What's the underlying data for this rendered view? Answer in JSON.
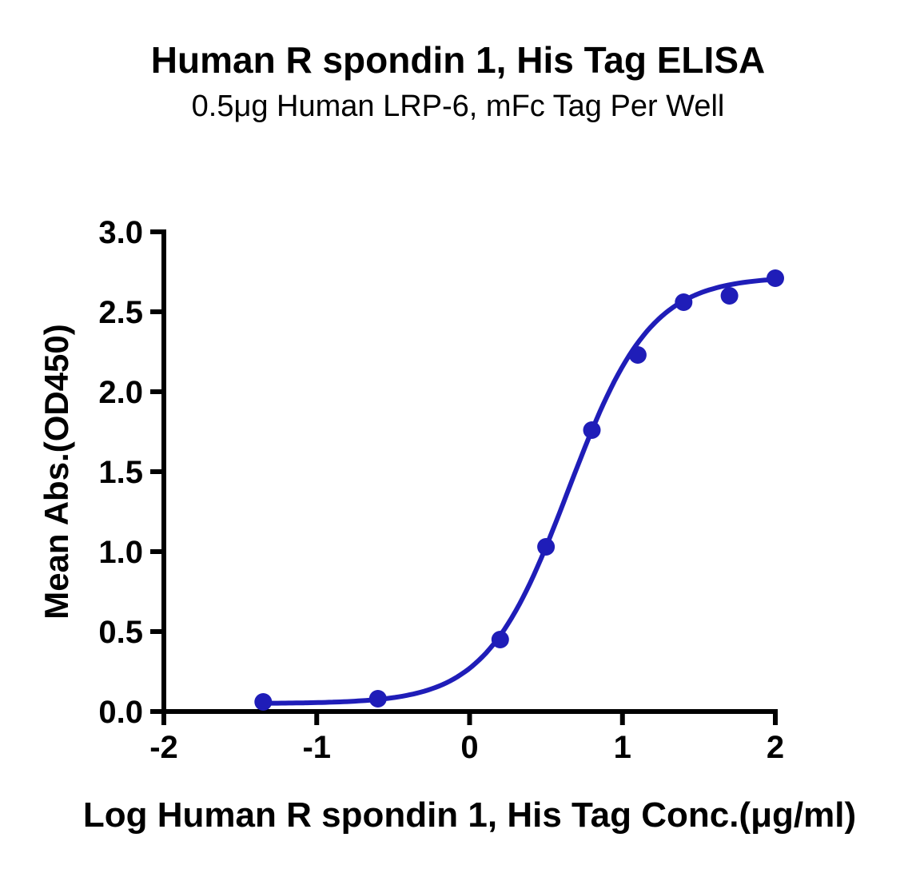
{
  "chart_data": {
    "type": "scatter",
    "title": "Human R spondin 1, His Tag ELISA",
    "subtitle": "0.5μg Human LRP-6, mFc Tag Per Well",
    "xlabel": "Log Human R spondin 1, His Tag Conc.(μg/ml)",
    "ylabel": "Mean Abs.(OD450)",
    "xlim": [
      -2,
      2
    ],
    "ylim": [
      0,
      3
    ],
    "x_ticks": [
      "-2",
      "-1",
      "0",
      "1",
      "2"
    ],
    "y_ticks": [
      "0.0",
      "0.5",
      "1.0",
      "1.5",
      "2.0",
      "2.5",
      "3.0"
    ],
    "grid": false,
    "legend": "none",
    "series": [
      {
        "name": "Human R spondin 1, His Tag",
        "color": "#1f1db8",
        "points": [
          {
            "x": -1.35,
            "y": 0.06
          },
          {
            "x": -0.6,
            "y": 0.08
          },
          {
            "x": 0.2,
            "y": 0.45
          },
          {
            "x": 0.5,
            "y": 1.03
          },
          {
            "x": 0.8,
            "y": 1.76
          },
          {
            "x": 1.1,
            "y": 2.23
          },
          {
            "x": 1.4,
            "y": 2.56
          },
          {
            "x": 1.7,
            "y": 2.6
          },
          {
            "x": 2.0,
            "y": 2.71
          }
        ],
        "fit": {
          "model": "4PL",
          "bottom": 0.05,
          "top": 2.72,
          "logEC50": 0.646,
          "hillslope": 1.62
        }
      }
    ]
  },
  "colors": {
    "accent": "#1f1db8",
    "axis": "#000000",
    "background": "#ffffff",
    "text": "#000000"
  }
}
